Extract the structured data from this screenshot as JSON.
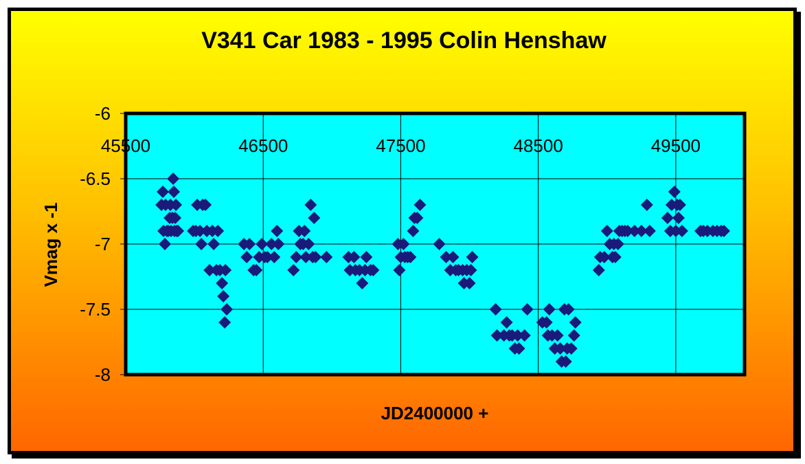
{
  "chart_data": {
    "type": "scatter",
    "title": "V341 Car 1983 - 1995 Colin Henshaw",
    "xlabel": "JD2400000 +",
    "ylabel": "Vmag x -1",
    "xlim": [
      45500,
      50000
    ],
    "ylim": [
      -8,
      -6
    ],
    "x_ticks": [
      "45500",
      "46500",
      "47500",
      "48500",
      "49500"
    ],
    "x_tick_values": [
      45500,
      46500,
      47500,
      48500,
      49500
    ],
    "y_ticks": [
      "-6",
      "-6.5",
      "-7",
      "-7.5",
      "-8"
    ],
    "y_tick_values": [
      -6,
      -6.5,
      -7,
      -7.5,
      -8
    ],
    "grid": true,
    "colors": {
      "marker": "#1a1a7a",
      "plot_background": "#00ffff",
      "frame_top": "#ffff00",
      "frame_bottom": "#ff6600"
    },
    "marker": "diamond",
    "points": [
      [
        45760,
        -6.7
      ],
      [
        45770,
        -6.6
      ],
      [
        45775,
        -6.9
      ],
      [
        45785,
        -7.0
      ],
      [
        45790,
        -6.7
      ],
      [
        45800,
        -6.9
      ],
      [
        45810,
        -6.9
      ],
      [
        45820,
        -6.8
      ],
      [
        45825,
        -6.7
      ],
      [
        45830,
        -6.9
      ],
      [
        45840,
        -6.8
      ],
      [
        45845,
        -6.5
      ],
      [
        45850,
        -6.6
      ],
      [
        45855,
        -6.9
      ],
      [
        45860,
        -6.8
      ],
      [
        45865,
        -6.7
      ],
      [
        45870,
        -6.9
      ],
      [
        45880,
        -6.9
      ],
      [
        45990,
        -6.9
      ],
      [
        46010,
        -6.9
      ],
      [
        46020,
        -6.7
      ],
      [
        46040,
        -6.9
      ],
      [
        46050,
        -7.0
      ],
      [
        46060,
        -6.7
      ],
      [
        46080,
        -6.7
      ],
      [
        46090,
        -6.9
      ],
      [
        46110,
        -7.2
      ],
      [
        46130,
        -6.9
      ],
      [
        46140,
        -7.0
      ],
      [
        46160,
        -7.2
      ],
      [
        46170,
        -6.9
      ],
      [
        46185,
        -7.2
      ],
      [
        46200,
        -7.3
      ],
      [
        46210,
        -7.4
      ],
      [
        46220,
        -7.6
      ],
      [
        46225,
        -7.2
      ],
      [
        46235,
        -7.5
      ],
      [
        46360,
        -7.0
      ],
      [
        46380,
        -7.1
      ],
      [
        46400,
        -7.0
      ],
      [
        46430,
        -7.2
      ],
      [
        46450,
        -7.2
      ],
      [
        46470,
        -7.1
      ],
      [
        46490,
        -7.0
      ],
      [
        46510,
        -7.1
      ],
      [
        46530,
        -7.1
      ],
      [
        46560,
        -7.0
      ],
      [
        46580,
        -7.1
      ],
      [
        46600,
        -6.9
      ],
      [
        46610,
        -7.0
      ],
      [
        46720,
        -7.2
      ],
      [
        46740,
        -7.1
      ],
      [
        46760,
        -6.9
      ],
      [
        46770,
        -7.0
      ],
      [
        46790,
        -7.0
      ],
      [
        46800,
        -6.9
      ],
      [
        46810,
        -7.1
      ],
      [
        46830,
        -7.0
      ],
      [
        46845,
        -6.7
      ],
      [
        46860,
        -7.1
      ],
      [
        46870,
        -6.8
      ],
      [
        46880,
        -7.1
      ],
      [
        46960,
        -7.1
      ],
      [
        47120,
        -7.1
      ],
      [
        47130,
        -7.2
      ],
      [
        47160,
        -7.1
      ],
      [
        47170,
        -7.2
      ],
      [
        47200,
        -7.2
      ],
      [
        47220,
        -7.3
      ],
      [
        47240,
        -7.2
      ],
      [
        47250,
        -7.1
      ],
      [
        47280,
        -7.2
      ],
      [
        47300,
        -7.2
      ],
      [
        47480,
        -7.0
      ],
      [
        47490,
        -7.2
      ],
      [
        47500,
        -7.1
      ],
      [
        47520,
        -7.0
      ],
      [
        47530,
        -7.1
      ],
      [
        47550,
        -7.1
      ],
      [
        47570,
        -7.1
      ],
      [
        47590,
        -6.9
      ],
      [
        47600,
        -6.8
      ],
      [
        47620,
        -6.8
      ],
      [
        47640,
        -6.7
      ],
      [
        47780,
        -7.0
      ],
      [
        47830,
        -7.1
      ],
      [
        47860,
        -7.2
      ],
      [
        47880,
        -7.1
      ],
      [
        47900,
        -7.2
      ],
      [
        47920,
        -7.2
      ],
      [
        47950,
        -7.2
      ],
      [
        47960,
        -7.3
      ],
      [
        47980,
        -7.2
      ],
      [
        48000,
        -7.3
      ],
      [
        48010,
        -7.2
      ],
      [
        48020,
        -7.1
      ],
      [
        48190,
        -7.5
      ],
      [
        48200,
        -7.7
      ],
      [
        48250,
        -7.7
      ],
      [
        48270,
        -7.6
      ],
      [
        48290,
        -7.7
      ],
      [
        48310,
        -7.7
      ],
      [
        48330,
        -7.8
      ],
      [
        48350,
        -7.7
      ],
      [
        48360,
        -7.8
      ],
      [
        48400,
        -7.7
      ],
      [
        48420,
        -7.5
      ],
      [
        48530,
        -7.6
      ],
      [
        48560,
        -7.6
      ],
      [
        48570,
        -7.7
      ],
      [
        48580,
        -7.5
      ],
      [
        48600,
        -7.7
      ],
      [
        48620,
        -7.8
      ],
      [
        48640,
        -7.7
      ],
      [
        48660,
        -7.8
      ],
      [
        48670,
        -7.9
      ],
      [
        48690,
        -7.5
      ],
      [
        48700,
        -7.9
      ],
      [
        48710,
        -7.8
      ],
      [
        48720,
        -7.5
      ],
      [
        48740,
        -7.8
      ],
      [
        48760,
        -7.7
      ],
      [
        48770,
        -7.6
      ],
      [
        48940,
        -7.2
      ],
      [
        48950,
        -7.1
      ],
      [
        48980,
        -7.1
      ],
      [
        49000,
        -6.9
      ],
      [
        49020,
        -7.0
      ],
      [
        49040,
        -7.1
      ],
      [
        49050,
        -7.0
      ],
      [
        49060,
        -7.1
      ],
      [
        49080,
        -7.0
      ],
      [
        49090,
        -6.9
      ],
      [
        49110,
        -6.9
      ],
      [
        49130,
        -6.9
      ],
      [
        49150,
        -6.9
      ],
      [
        49200,
        -6.9
      ],
      [
        49250,
        -6.9
      ],
      [
        49290,
        -6.7
      ],
      [
        49310,
        -6.9
      ],
      [
        49440,
        -6.8
      ],
      [
        49460,
        -6.9
      ],
      [
        49470,
        -6.7
      ],
      [
        49490,
        -6.6
      ],
      [
        49500,
        -6.9
      ],
      [
        49510,
        -6.7
      ],
      [
        49520,
        -6.8
      ],
      [
        49530,
        -6.7
      ],
      [
        49545,
        -6.9
      ],
      [
        49680,
        -6.9
      ],
      [
        49700,
        -6.9
      ],
      [
        49730,
        -6.9
      ],
      [
        49770,
        -6.9
      ],
      [
        49800,
        -6.9
      ],
      [
        49830,
        -6.9
      ],
      [
        49850,
        -6.9
      ]
    ]
  }
}
